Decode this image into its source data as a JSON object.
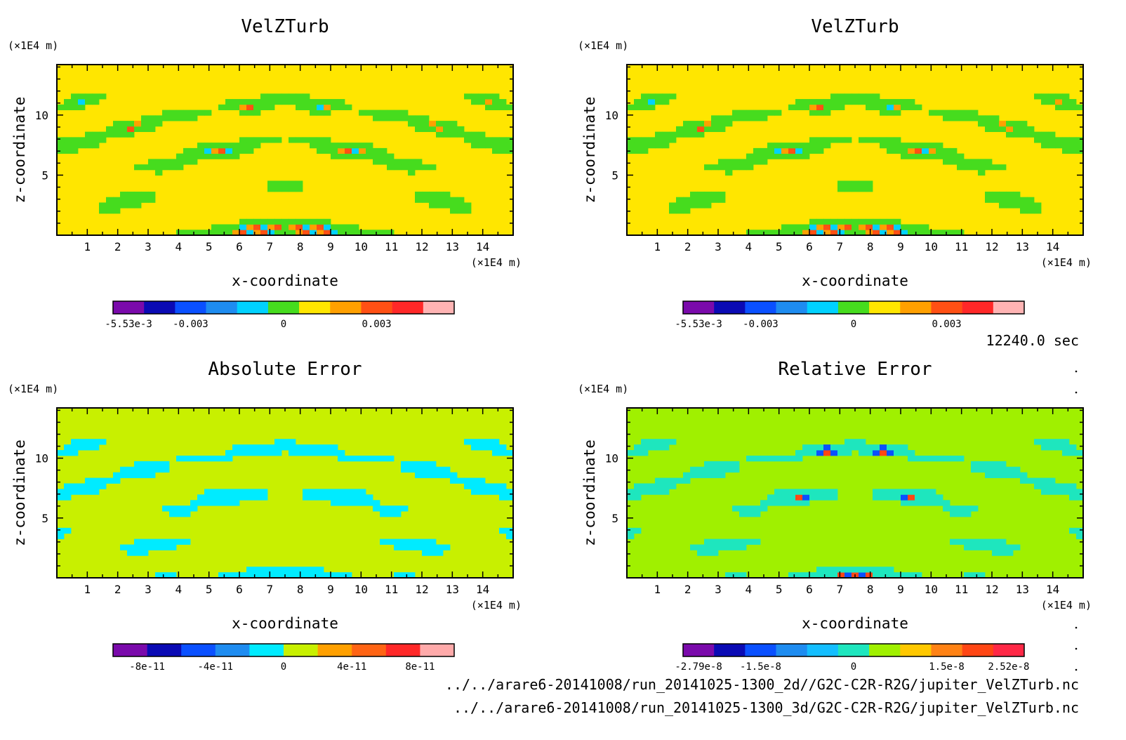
{
  "chart_data": [
    {
      "type": "heatmap",
      "title": "VelZTurb",
      "xlabel": "x-coordinate",
      "ylabel": "z-coordinate",
      "x_unit": "(×1E4 m)",
      "y_unit": "(×1E4 m)",
      "xlim": [
        0,
        15
      ],
      "ylim": [
        0,
        14.2
      ],
      "x_ticks": [
        1,
        2,
        3,
        4,
        5,
        6,
        7,
        8,
        9,
        10,
        11,
        12,
        13,
        14
      ],
      "y_ticks": [
        5,
        10
      ],
      "colorbar": {
        "colors": [
          "#7a0aab",
          "#0a0ab4",
          "#0a50ff",
          "#1e8cf0",
          "#00d2ff",
          "#46dc1e",
          "#ffe600",
          "#ffa000",
          "#ff5014",
          "#ff2828",
          "#ffb4b4"
        ],
        "labels": [
          "-5.53e-3",
          "-0.003",
          "0",
          "0.003"
        ],
        "label_slots": [
          0,
          2,
          5,
          8
        ]
      },
      "dominant_level": 6,
      "secondary_level": 5,
      "accent_levels": [
        4,
        7,
        8
      ]
    },
    {
      "type": "heatmap",
      "title": "VelZTurb",
      "xlabel": "x-coordinate",
      "ylabel": "z-coordinate",
      "x_unit": "(×1E4 m)",
      "y_unit": "(×1E4 m)",
      "xlim": [
        0,
        15
      ],
      "ylim": [
        0,
        14.2
      ],
      "x_ticks": [
        1,
        2,
        3,
        4,
        5,
        6,
        7,
        8,
        9,
        10,
        11,
        12,
        13,
        14
      ],
      "y_ticks": [
        5,
        10
      ],
      "colorbar": {
        "colors": [
          "#7a0aab",
          "#0a0ab4",
          "#0a50ff",
          "#1e8cf0",
          "#00d2ff",
          "#46dc1e",
          "#ffe600",
          "#ffa000",
          "#ff5014",
          "#ff2828",
          "#ffb4b4"
        ],
        "labels": [
          "-5.53e-3",
          "-0.003",
          "0",
          "0.003"
        ],
        "label_slots": [
          0,
          2,
          5,
          8
        ]
      },
      "dominant_level": 6,
      "secondary_level": 5,
      "accent_levels": [
        4,
        7,
        8
      ]
    },
    {
      "type": "heatmap",
      "title": "Absolute Error",
      "xlabel": "x-coordinate",
      "ylabel": "z-coordinate",
      "x_unit": "(×1E4 m)",
      "y_unit": "(×1E4 m)",
      "xlim": [
        0,
        15
      ],
      "ylim": [
        0,
        14.2
      ],
      "x_ticks": [
        1,
        2,
        3,
        4,
        5,
        6,
        7,
        8,
        9,
        10,
        11,
        12,
        13,
        14
      ],
      "y_ticks": [
        5,
        10
      ],
      "colorbar": {
        "colors": [
          "#7a0aab",
          "#0a0ab4",
          "#0a50ff",
          "#1e8cf0",
          "#00ebff",
          "#c8f000",
          "#ffa000",
          "#ff6414",
          "#ff2828",
          "#ffaaaa"
        ],
        "labels": [
          "-8e-11",
          "-4e-11",
          "0",
          "4e-11",
          "8e-11"
        ],
        "label_slots": [
          0.5,
          2.5,
          4.5,
          6.5,
          8.5
        ]
      },
      "dominant_level": 5,
      "secondary_level": 4,
      "accent_levels": []
    },
    {
      "type": "heatmap",
      "title": "Relative Error",
      "xlabel": "x-coordinate",
      "ylabel": "z-coordinate",
      "x_unit": "(×1E4 m)",
      "y_unit": "(×1E4 m)",
      "xlim": [
        0,
        15
      ],
      "ylim": [
        0,
        14.2
      ],
      "x_ticks": [
        1,
        2,
        3,
        4,
        5,
        6,
        7,
        8,
        9,
        10,
        11,
        12,
        13,
        14
      ],
      "y_ticks": [
        5,
        10
      ],
      "colorbar": {
        "colors": [
          "#7a0aab",
          "#0a0ab4",
          "#0a50ff",
          "#1e8cf0",
          "#14beff",
          "#1ee6be",
          "#a0f000",
          "#ffc800",
          "#ff8214",
          "#ff4614",
          "#ff2846"
        ],
        "labels": [
          "-2.79e-8",
          "-1.5e-8",
          "0",
          "1.5e-8",
          "2.52e-8"
        ],
        "label_slots": [
          0,
          2,
          5,
          8,
          10
        ]
      },
      "dominant_level": 6,
      "secondary_level": 5,
      "accent_levels": [
        9,
        2
      ]
    }
  ],
  "time_label": "12240.0 sec",
  "footer": {
    "file_2d": "../../arare6-20141008/run_20141025-1300_2d//G2C-C2R-R2G/jupiter_VelZTurb.nc",
    "file_3d": "../../arare6-20141008/run_20141025-1300_3d/G2C-C2R-R2G/jupiter_VelZTurb.nc"
  }
}
